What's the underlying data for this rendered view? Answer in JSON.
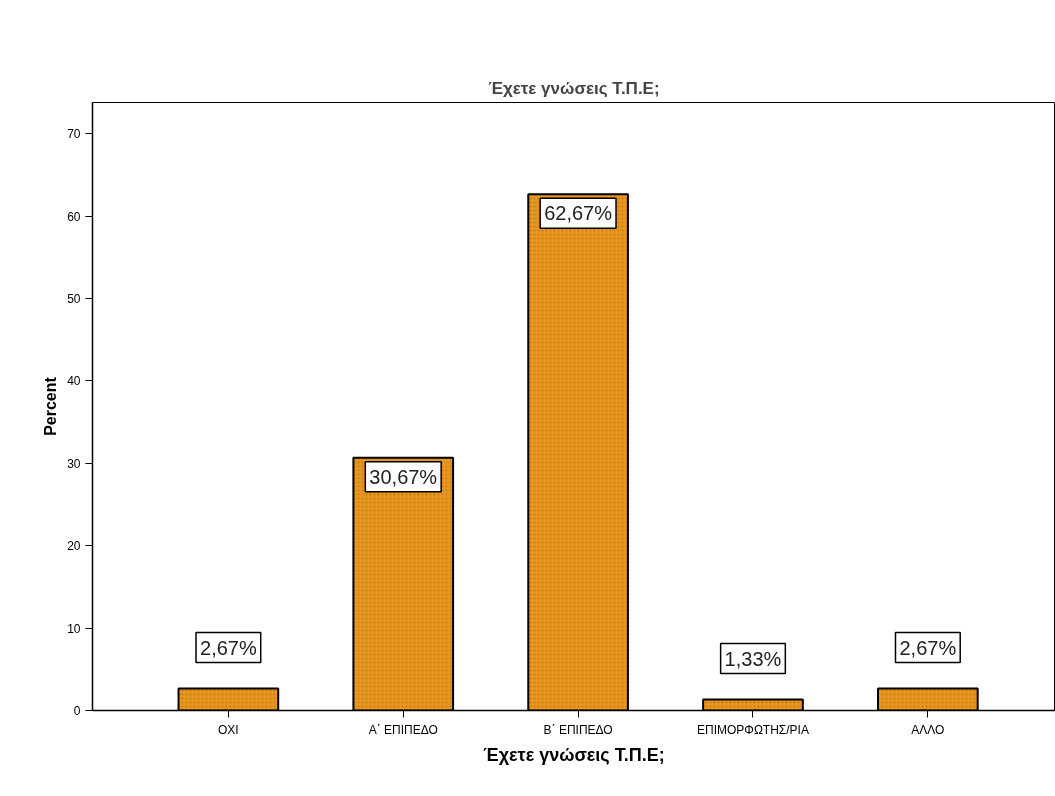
{
  "chart_data": {
    "type": "bar",
    "title": "Έχετε γνώσεις Τ.Π.Ε;",
    "xlabel": "Έχετε γνώσεις Τ.Π.Ε;",
    "ylabel": "Percent",
    "categories": [
      "OXI",
      "Α΄ ΕΠΙΠΕΔΟ",
      "Β΄ ΕΠΙΠΕΔΟ",
      "ΕΠΙΜΟΡΦΩΤΗΣ/ΡΙΑ",
      "ΑΛΛΟ"
    ],
    "values": [
      2.67,
      30.67,
      62.67,
      1.33,
      2.67
    ],
    "value_labels": [
      "2,67%",
      "30,67%",
      "62,67%",
      "1,33%",
      "2,67%"
    ],
    "color": "#e8961e",
    "ylim": [
      0,
      73.8
    ],
    "yticks": [
      0,
      10,
      20,
      30,
      40,
      50,
      60,
      70
    ],
    "grid": false
  }
}
